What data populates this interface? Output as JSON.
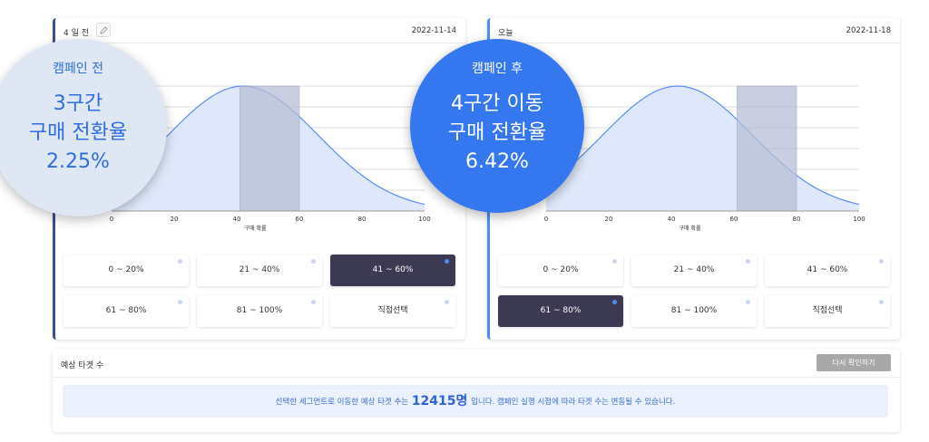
{
  "left_panel": {
    "title": "4 일 전",
    "date": "2022-11-14",
    "bubble": {
      "subtitle": "캠페인 전",
      "line1": "3구간",
      "line2": "구매 전환율",
      "line3": "2.25%"
    },
    "segments": [
      {
        "label": "0 ~ 20%",
        "selected": false
      },
      {
        "label": "21 ~ 40%",
        "selected": false
      },
      {
        "label": "41 ~ 60%",
        "selected": true
      },
      {
        "label": "61 ~ 80%",
        "selected": false
      },
      {
        "label": "81 ~ 100%",
        "selected": false
      },
      {
        "label": "직접선택",
        "selected": false
      }
    ]
  },
  "right_panel": {
    "title": "오늘",
    "date": "2022-11-18",
    "bubble": {
      "subtitle": "캠페인 후",
      "line1": "4구간 이동",
      "line2": "구매 전환율",
      "line3": "6.42%"
    },
    "segments": [
      {
        "label": "0 ~ 20%",
        "selected": false
      },
      {
        "label": "21 ~ 40%",
        "selected": false
      },
      {
        "label": "41 ~ 60%",
        "selected": false
      },
      {
        "label": "61 ~ 80%",
        "selected": true
      },
      {
        "label": "81 ~ 100%",
        "selected": false
      },
      {
        "label": "직접선택",
        "selected": false
      }
    ]
  },
  "chart_data": [
    {
      "type": "area",
      "xlabel": "구매 확률",
      "x_ticks": [
        "0",
        "20",
        "40",
        "60",
        "80",
        "100"
      ],
      "xlim": [
        0,
        100
      ],
      "curve_peak_x": 42,
      "highlight_range": [
        41,
        60
      ],
      "grid": true
    },
    {
      "type": "area",
      "xlabel": "구매 확률",
      "x_ticks": [
        "0",
        "20",
        "40",
        "60",
        "80",
        "100"
      ],
      "xlim": [
        0,
        100
      ],
      "curve_peak_x": 42,
      "highlight_range": [
        61,
        80
      ],
      "grid": true
    }
  ],
  "bottom": {
    "label": "예상 타겟 수",
    "recheck_label": "다시 확인하기",
    "notice_before": "선택한 세그먼트로 이동한 예상 타겟 수는",
    "target_count": "12415명",
    "notice_after": "입니다. 캠페인 실행 시점에 따라 타겟 수는 변동될 수 있습니다."
  },
  "colors": {
    "accent": "#3577ee",
    "selected_segment": "#3b3a52",
    "curve_fill": "#dbe6fb",
    "highlight": "#b7bfd6"
  }
}
